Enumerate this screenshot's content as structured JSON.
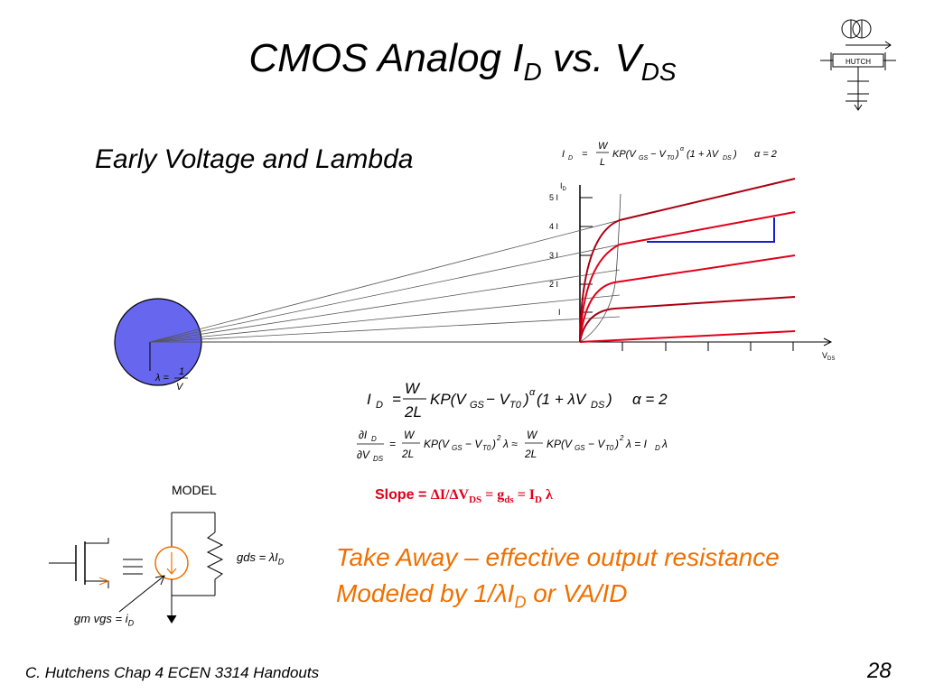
{
  "slide": {
    "title_main": "CMOS Analog I",
    "title_sub1": "D",
    "title_mid": " vs. V",
    "title_sub2": "DS",
    "subtitle": "Early Voltage and Lambda",
    "footer": "C. Hutchens Chap 4 ECEN 3314 Handouts",
    "page_number": "28"
  },
  "logo": {
    "text": "HUTCH"
  },
  "graph": {
    "y_axis_label": "I",
    "y_axis_sub": "D",
    "x_axis_label": "V",
    "x_axis_sub": "DS",
    "y_ticks": [
      "5 I",
      "4 I",
      "3 I",
      "2 I",
      "I"
    ],
    "lambda_eq": {
      "lhs": "λ =",
      "num": "1",
      "den": "V"
    }
  },
  "equations": {
    "top_small": "I_D = (W/L) KP(V_GS − V_T0)^α (1 + λV_DS)   α = 2",
    "main": "I_D = (W/2L) KP(V_GS − V_T0)^α (1 + λV_DS)   α = 2",
    "derivative": "∂I_D/∂V_DS = (W/2L) KP(V_GS − V_T0)^2 λ ≈ (W/2L) KP(V_GS − V_T0)^2 λ = I_D λ"
  },
  "slope": {
    "label": "Slope = ",
    "expr": "ΔI/ΔV",
    "sub1": "DS",
    "mid": " = g",
    "sub2": "ds",
    "tail": " = I",
    "sub3": "D",
    "end": " λ"
  },
  "model": {
    "label": "MODEL",
    "gds_label": "gds = λI",
    "gds_sub": "D",
    "gm_label": "gm vgs = i",
    "gm_sub": "D"
  },
  "takeaway": {
    "line1": "Take Away – effective output resistance",
    "line2_a": "Modeled by 1/λI",
    "line2_sub": "D",
    "line2_b": " or VA/ID"
  },
  "colors": {
    "curve": "#e0001a",
    "curve_dark": "#aa0010",
    "triangle": "#1a1ad0",
    "circle_fill": "#6666ee",
    "takeaway": "#f07000",
    "slope_text": "#e0001a"
  }
}
